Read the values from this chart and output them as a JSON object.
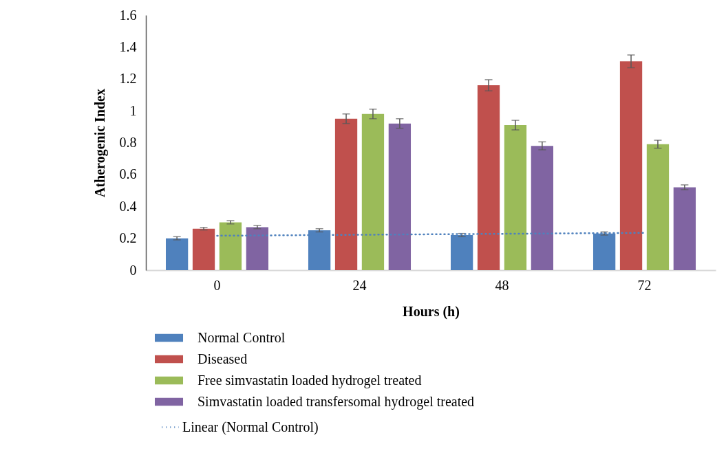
{
  "chart_data": {
    "type": "bar",
    "xlabel": "Hours (h)",
    "ylabel": "Atherogenic Index",
    "categories": [
      "0",
      "24",
      "48",
      "72"
    ],
    "ylim": [
      0,
      1.6
    ],
    "yticks": [
      0,
      0.2,
      0.4,
      0.6,
      0.8,
      1,
      1.2,
      1.4,
      1.6
    ],
    "grid": false,
    "legend": "bottom",
    "series": [
      {
        "name": "Normal Control",
        "color": "#4f81bd",
        "values": [
          0.2,
          0.25,
          0.22,
          0.23
        ],
        "errors": [
          0.01,
          0.01,
          0.01,
          0.01
        ]
      },
      {
        "name": "Diseased",
        "color": "#c0504d",
        "values": [
          0.26,
          0.95,
          1.16,
          1.31
        ],
        "errors": [
          0.008,
          0.03,
          0.035,
          0.04
        ]
      },
      {
        "name": "Free simvastatin loaded hydrogel treated",
        "color": "#9bbb59",
        "values": [
          0.3,
          0.98,
          0.91,
          0.79
        ],
        "errors": [
          0.01,
          0.03,
          0.03,
          0.025
        ]
      },
      {
        "name": "Simvastatin loaded transfersomal hydrogel treated",
        "color": "#8064a2",
        "values": [
          0.27,
          0.92,
          0.78,
          0.52
        ],
        "errors": [
          0.01,
          0.03,
          0.025,
          0.015
        ]
      },
      {
        "name": "Linear (Normal Control)",
        "type": "line",
        "color": "#4f81bd",
        "x": [
          "0",
          "24",
          "48",
          "72"
        ],
        "values": [
          0.216,
          0.222,
          0.228,
          0.234
        ],
        "line_style": "dotted",
        "marker": "none"
      }
    ]
  }
}
